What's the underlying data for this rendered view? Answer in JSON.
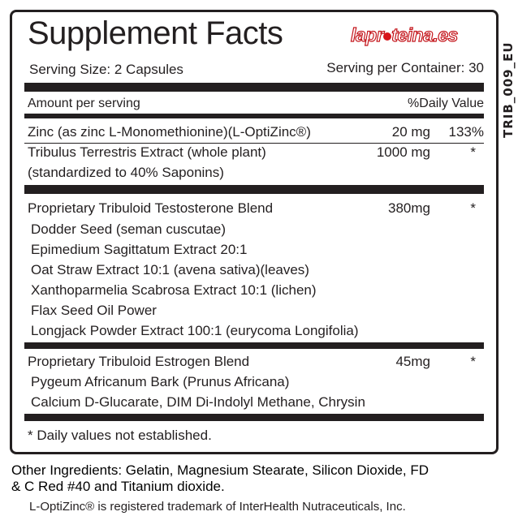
{
  "title": "Supplement Facts",
  "logo": "laproteina.es",
  "product_code": "TRIB_009_EU",
  "serving_size": "Serving Size: 2 Capsules",
  "servings_per_container": "Serving per Container: 30",
  "amount_header": "Amount per serving",
  "dv_header": "%Daily Value",
  "rows": [
    {
      "name": "Zinc (as zinc L-Monomethionine)(L-OptiZinc®)",
      "amount": "20 mg",
      "dv": "133%"
    },
    {
      "name": "Tribulus Terrestris Extract (whole plant)",
      "name2": "(standardized to 40% Saponins)",
      "amount": "1000 mg",
      "dv": "*"
    }
  ],
  "blend1": {
    "name": "Proprietary Tribuloid Testosterone Blend",
    "amount": "380mg",
    "dv": "*",
    "items": [
      "Dodder Seed (seman cuscutae)",
      "Epimedium Sagittatum Extract 20:1",
      "Oat Straw Extract 10:1 (avena sativa)(leaves)",
      "Xanthoparmelia Scabrosa Extract 10:1 (lichen)",
      "Flax Seed Oil Power",
      "Longjack Powder Extract 100:1 (eurycoma Longifolia)"
    ]
  },
  "blend2": {
    "name": "Proprietary Tribuloid Estrogen Blend",
    "amount": "45mg",
    "dv": "*",
    "items": [
      "Pygeum Africanum Bark (Prunus Africana)",
      "Calcium D-Glucarate, DIM Di-Indolyl Methane, Chrysin"
    ]
  },
  "footnote": "* Daily values not established.",
  "other_ingredients_1": "Other Ingredients: Gelatin, Magnesium Stearate, Silicon Dioxide, FD",
  "other_ingredients_2": "& C Red #40 and Titanium dioxide.",
  "trademark": "L-OptiZinc® is registered trademark of InterHealth Nutraceuticals, Inc."
}
